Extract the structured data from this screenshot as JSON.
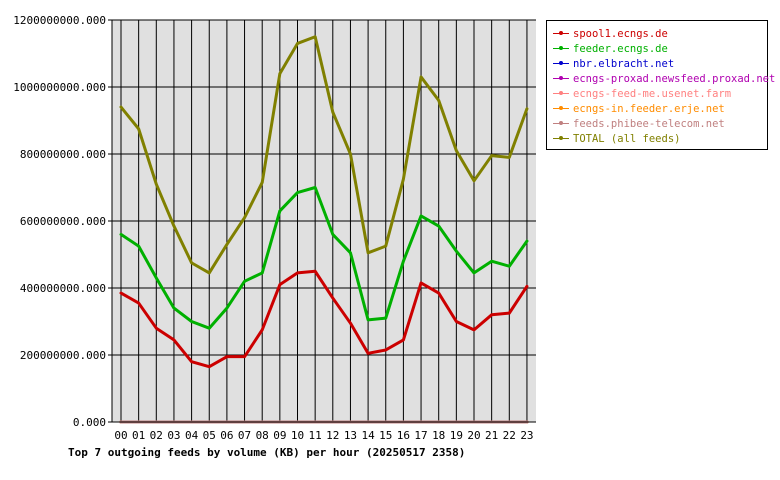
{
  "chart_data": {
    "type": "line",
    "title": "Top 7 outgoing feeds by volume (KB) per hour (20250517 2358)",
    "categories": [
      "00",
      "01",
      "02",
      "03",
      "04",
      "05",
      "06",
      "07",
      "08",
      "09",
      "10",
      "11",
      "12",
      "13",
      "14",
      "15",
      "16",
      "17",
      "18",
      "19",
      "20",
      "21",
      "22",
      "23"
    ],
    "ylim": [
      0,
      1200000000
    ],
    "y_ticks": [
      "0.000",
      "200000000.000",
      "400000000.000",
      "600000000.000",
      "800000000.000",
      "1000000000.000",
      "1200000000.000"
    ],
    "grid": true,
    "legend_position": "right",
    "series": [
      {
        "name": "spool1.ecngs.de",
        "color": "#cc0000",
        "values": [
          385000000,
          355000000,
          280000000,
          245000000,
          180000000,
          165000000,
          195000000,
          195000000,
          275000000,
          410000000,
          445000000,
          450000000,
          370000000,
          295000000,
          205000000,
          215000000,
          245000000,
          415000000,
          385000000,
          300000000,
          275000000,
          320000000,
          325000000,
          405000000
        ]
      },
      {
        "name": "feeder.ecngs.de",
        "color": "#00b000",
        "values": [
          560000000,
          525000000,
          430000000,
          340000000,
          300000000,
          280000000,
          340000000,
          420000000,
          445000000,
          630000000,
          685000000,
          700000000,
          560000000,
          505000000,
          305000000,
          310000000,
          480000000,
          615000000,
          585000000,
          510000000,
          445000000,
          480000000,
          465000000,
          540000000
        ]
      },
      {
        "name": "nbr.elbracht.net",
        "color": "#0000cc",
        "values": [
          0,
          0,
          0,
          0,
          0,
          0,
          0,
          0,
          0,
          0,
          0,
          0,
          0,
          0,
          0,
          0,
          0,
          0,
          0,
          0,
          0,
          0,
          0,
          0
        ]
      },
      {
        "name": "ecngs-proxad.newsfeed.proxad.net",
        "color": "#b000b0",
        "values": [
          0,
          0,
          0,
          0,
          0,
          0,
          0,
          0,
          0,
          0,
          0,
          0,
          0,
          0,
          0,
          0,
          0,
          0,
          0,
          0,
          0,
          0,
          0,
          0
        ]
      },
      {
        "name": "ecngs-feed-me.usenet.farm",
        "color": "#ff8080",
        "values": [
          0,
          0,
          0,
          0,
          0,
          0,
          0,
          0,
          0,
          0,
          0,
          0,
          0,
          0,
          0,
          0,
          0,
          0,
          0,
          0,
          0,
          0,
          0,
          0
        ]
      },
      {
        "name": "ecngs-in.feeder.erje.net",
        "color": "#ff8c00",
        "values": [
          0,
          0,
          0,
          0,
          0,
          0,
          0,
          0,
          0,
          0,
          0,
          0,
          0,
          0,
          0,
          0,
          0,
          0,
          0,
          0,
          0,
          0,
          0,
          0
        ]
      },
      {
        "name": "feeds.phibee-telecom.net",
        "color": "#c08080",
        "values": [
          0,
          0,
          0,
          0,
          0,
          0,
          0,
          0,
          0,
          0,
          0,
          0,
          0,
          0,
          0,
          0,
          0,
          0,
          0,
          0,
          0,
          0,
          0,
          0
        ]
      },
      {
        "name": "TOTAL (all feeds)",
        "color": "#808000",
        "values": [
          940000000,
          875000000,
          710000000,
          585000000,
          475000000,
          445000000,
          530000000,
          610000000,
          715000000,
          1040000000,
          1130000000,
          1150000000,
          925000000,
          800000000,
          505000000,
          525000000,
          725000000,
          1030000000,
          960000000,
          810000000,
          720000000,
          795000000,
          790000000,
          935000000
        ]
      }
    ]
  }
}
